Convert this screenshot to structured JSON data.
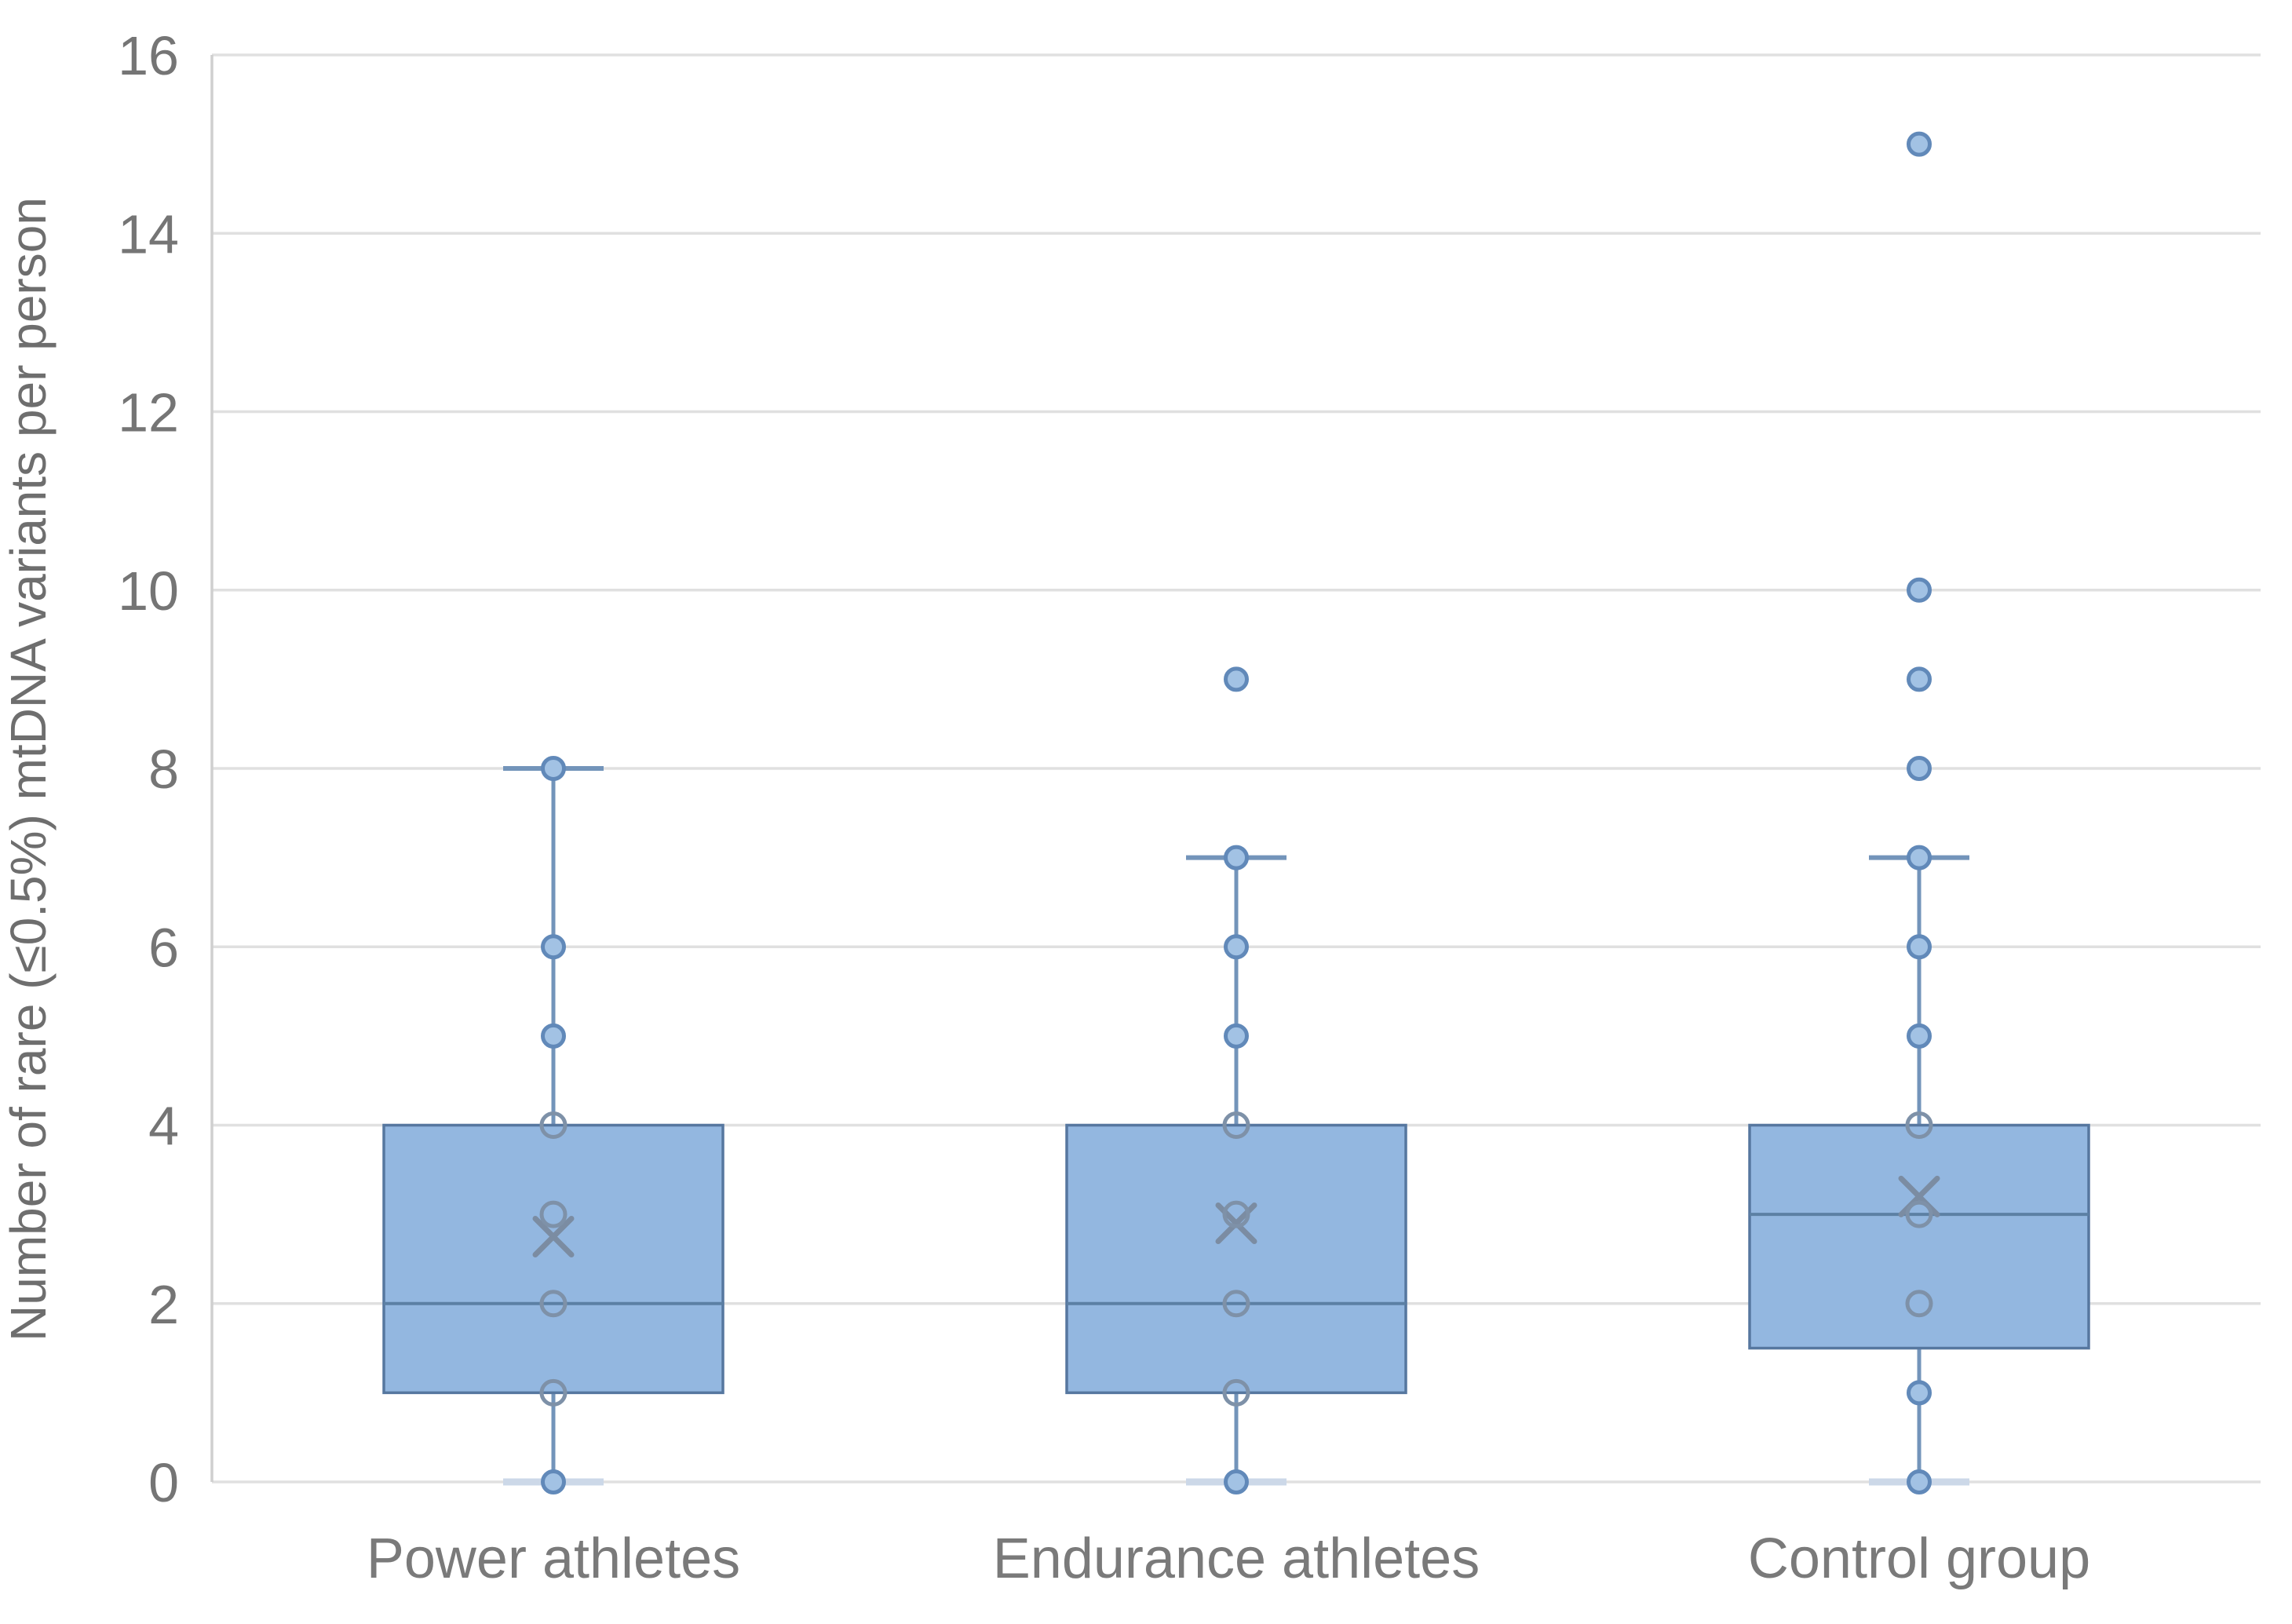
{
  "page": {
    "background": "#ffffff"
  },
  "chart_data": {
    "type": "boxplot",
    "title": "",
    "ylabel": "Number of rare (≤0.5%) mtDNA variants per person",
    "xlabel": "",
    "ylim": [
      0,
      16
    ],
    "yticks": [
      0,
      2,
      4,
      6,
      8,
      10,
      12,
      14,
      16
    ],
    "grid": "horizontal-only",
    "legend": "none",
    "categories": [
      "Power athletes",
      "Endurance athletes",
      "Control group"
    ],
    "series": [
      {
        "label": "Power athletes",
        "whisker_low": 0,
        "q1": 1,
        "median": 2,
        "q3": 4,
        "whisker_high": 8,
        "mean": 2.75,
        "points_open": [
          1,
          2,
          3,
          4
        ],
        "points_filled": [
          0,
          5,
          6,
          8
        ],
        "outliers": []
      },
      {
        "label": "Endurance athletes",
        "whisker_low": 0,
        "q1": 1,
        "median": 2,
        "q3": 4,
        "whisker_high": 7,
        "mean": 2.9,
        "points_open": [
          1,
          2,
          3,
          4
        ],
        "points_filled": [
          0,
          5,
          6,
          7
        ],
        "outliers": [
          9
        ]
      },
      {
        "label": "Control group",
        "whisker_low": 0,
        "q1": 1.5,
        "median": 3,
        "q3": 4,
        "whisker_high": 7,
        "mean": 3.2,
        "points_open": [
          2,
          3,
          4
        ],
        "points_filled": [
          0,
          1,
          5,
          6,
          7
        ],
        "outliers": [
          8,
          9,
          10,
          15
        ]
      }
    ],
    "colors": {
      "box_fill": "#93b7e0",
      "box_border": "#56779f",
      "median_line": "#5c80a4",
      "whisker_line": "#7394ba",
      "cap_top": "#7394ba",
      "cap_bottom": "#ccd8e8",
      "point_fill": "#a2c2e4",
      "point_stroke": "#6189b9",
      "open_point_stroke": "#7e91a8",
      "mean_marker": "#7b8ca2",
      "gridline": "#e0e0e0",
      "axis_line": "#cfcfcf",
      "label_text": "#7a7a7a"
    }
  }
}
